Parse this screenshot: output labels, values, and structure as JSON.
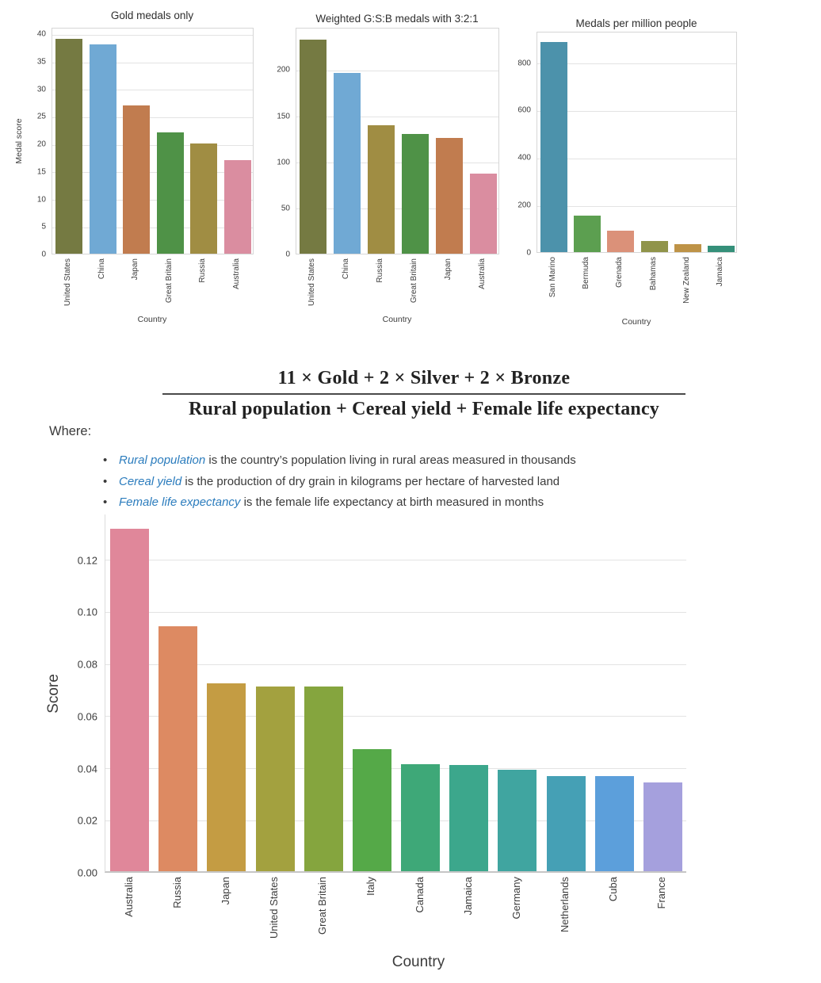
{
  "chart_data": [
    {
      "type": "bar",
      "title": "Gold medals only",
      "xlabel": "Country",
      "ylabel": "Medal score",
      "categories": [
        "United States",
        "China",
        "Japan",
        "Great Britain",
        "Russia",
        "Australia"
      ],
      "values": [
        39,
        38,
        27,
        22,
        20,
        17
      ],
      "colors": [
        "#757a42",
        "#70a9d4",
        "#c17c4f",
        "#4f9247",
        "#a08d43",
        "#da8da0"
      ],
      "yticks": [
        0,
        5,
        10,
        15,
        20,
        25,
        30,
        35,
        40
      ],
      "ytick_labels": [
        "0",
        "5",
        "10",
        "15",
        "20",
        "25",
        "30",
        "35",
        "40"
      ],
      "ylim": [
        0,
        41.2
      ],
      "grid": true,
      "legend": false
    },
    {
      "type": "bar",
      "title": "Weighted G:S:B medals with 3:2:1",
      "xlabel": "Country",
      "ylabel": "",
      "categories": [
        "United States",
        "China",
        "Russia",
        "Great Britain",
        "Japan",
        "Australia"
      ],
      "values": [
        232,
        196,
        139,
        130,
        126,
        87
      ],
      "colors": [
        "#757a42",
        "#70a9d4",
        "#a08d43",
        "#4f9247",
        "#c17c4f",
        "#da8da0"
      ],
      "yticks": [
        0,
        50,
        100,
        150,
        200
      ],
      "ytick_labels": [
        "0",
        "50",
        "100",
        "150",
        "200"
      ],
      "ylim": [
        0,
        246
      ],
      "grid": true,
      "legend": false
    },
    {
      "type": "bar",
      "title": "Medals per million people",
      "xlabel": "Country",
      "ylabel": "",
      "categories": [
        "San Marino",
        "Bermuda",
        "Grenada",
        "Bahamas",
        "New Zealand",
        "Jamaica"
      ],
      "values": [
        885,
        155,
        90,
        48,
        35,
        28
      ],
      "colors": [
        "#4c92ab",
        "#5c9f50",
        "#db9179",
        "#90944a",
        "#be9347",
        "#35907a"
      ],
      "yticks": [
        0,
        200,
        400,
        600,
        800
      ],
      "ytick_labels": [
        "0",
        "200",
        "400",
        "600",
        "800"
      ],
      "ylim": [
        0,
        932
      ],
      "grid": true,
      "legend": false
    },
    {
      "type": "bar",
      "title": "",
      "xlabel": "Country",
      "ylabel": "Score",
      "categories": [
        "Australia",
        "Russia",
        "Japan",
        "United States",
        "Great Britain",
        "Italy",
        "Canada",
        "Jamaica",
        "Germany",
        "Netherlands",
        "Cuba",
        "France"
      ],
      "values": [
        0.1315,
        0.094,
        0.072,
        0.071,
        0.071,
        0.047,
        0.0412,
        0.0408,
        0.039,
        0.0366,
        0.0366,
        0.0342
      ],
      "colors": [
        "#e0879a",
        "#dd8a62",
        "#c49c43",
        "#a3a13f",
        "#85a53e",
        "#55a948",
        "#3ea878",
        "#3ca78c",
        "#40a5a0",
        "#45a0b5",
        "#5c9fdb",
        "#a5a0dd"
      ],
      "yticks": [
        0,
        0.02,
        0.04,
        0.06,
        0.08,
        0.1,
        0.12
      ],
      "ytick_labels": [
        "0.00",
        "0.02",
        "0.04",
        "0.06",
        "0.08",
        "0.10",
        "0.12"
      ],
      "ylim": [
        0,
        0.1375
      ],
      "grid": true,
      "legend": false
    }
  ],
  "formula": {
    "numerator": "11 × Gold + 2  × Silver + 2  × Bronze",
    "denominator": "Rural population + Cereal yield + Female life expectancy"
  },
  "where": {
    "label": "Where:",
    "bullets": [
      {
        "term": "Rural population",
        "rest": " is the country’s population living in rural areas measured in thousands"
      },
      {
        "term": "Cereal yield",
        "rest": " is the production of dry grain in kilograms per hectare of harvested land"
      },
      {
        "term": "Female life expectancy",
        "rest": " is the female life expectancy at birth measured in months"
      }
    ]
  }
}
